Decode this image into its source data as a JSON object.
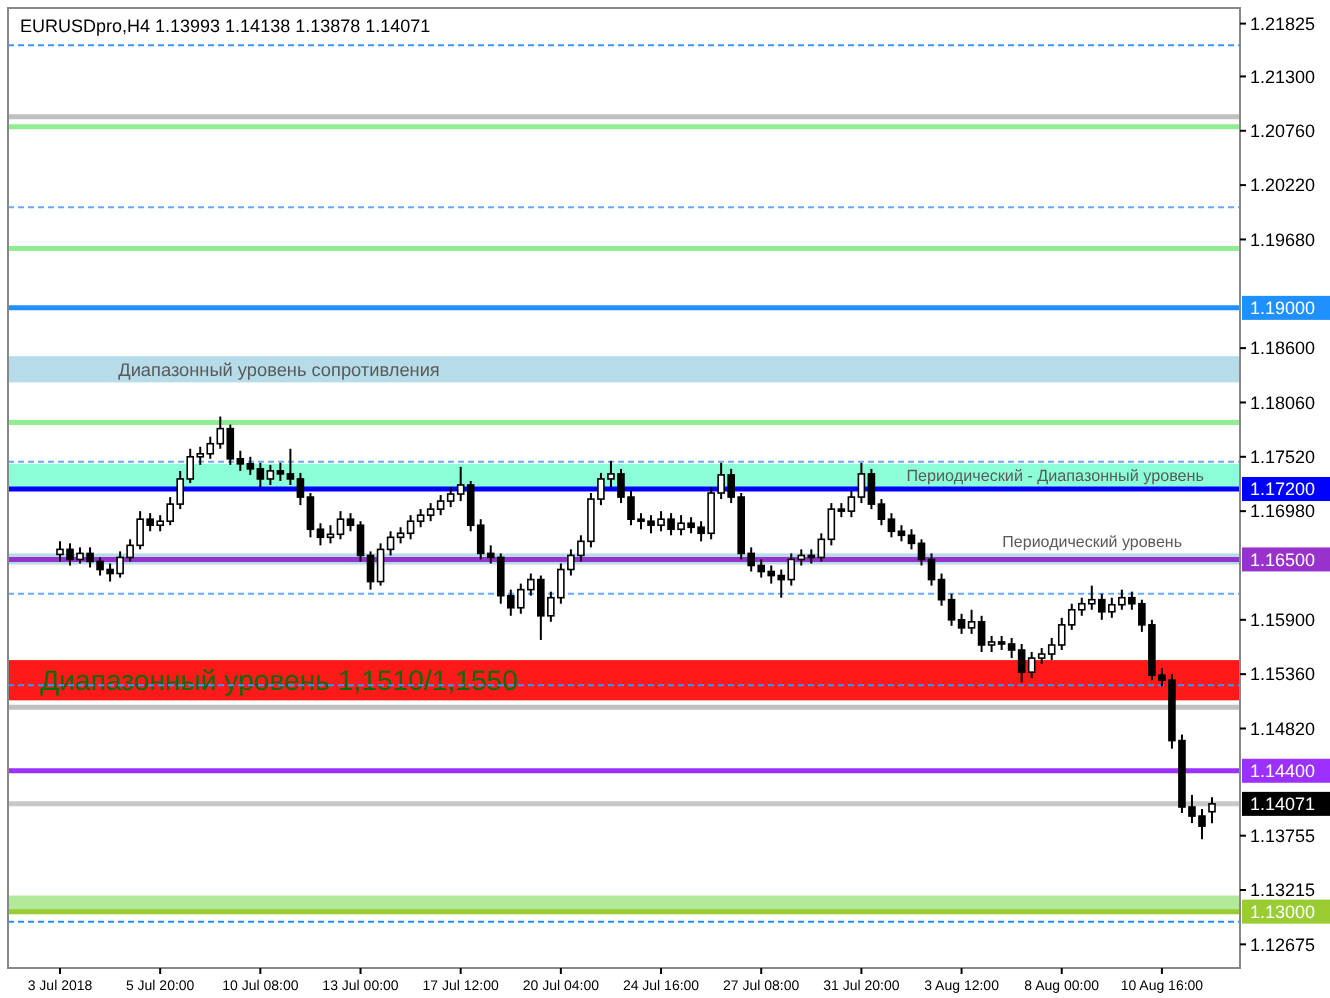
{
  "chart_data": {
    "type": "candlestick",
    "title": "EURUSDpro,H4  1.13993 1.14138 1.13878 1.14071",
    "categories": [
      "3 Jul 2018",
      null,
      null,
      null,
      null,
      null,
      null,
      null,
      null,
      null,
      "5 Jul 20:00",
      null,
      null,
      null,
      null,
      null,
      null,
      null,
      null,
      null,
      "10 Jul 08:00",
      null,
      null,
      null,
      null,
      null,
      null,
      null,
      null,
      null,
      "13 Jul 00:00",
      null,
      null,
      null,
      null,
      null,
      null,
      null,
      null,
      null,
      "17 Jul 12:00",
      null,
      null,
      null,
      null,
      null,
      null,
      null,
      null,
      null,
      "20 Jul 04:00",
      null,
      null,
      null,
      null,
      null,
      null,
      null,
      null,
      null,
      "24 Jul 16:00",
      null,
      null,
      null,
      null,
      null,
      null,
      null,
      null,
      null,
      "27 Jul 08:00",
      null,
      null,
      null,
      null,
      null,
      null,
      null,
      null,
      null,
      "31 Jul 20:00",
      null,
      null,
      null,
      null,
      null,
      null,
      null,
      null,
      null,
      "3 Aug 12:00",
      null,
      null,
      null,
      null,
      null,
      null,
      null,
      null,
      null,
      "8 Aug 00:00",
      null,
      null,
      null,
      null,
      null,
      null,
      null,
      null,
      null,
      "10 Aug 16:00",
      null,
      null,
      null,
      null,
      null
    ],
    "ohlc": [
      [
        1.1655,
        1.1668,
        1.1648,
        1.166
      ],
      [
        1.166,
        1.1666,
        1.1644,
        1.165
      ],
      [
        1.165,
        1.1662,
        1.1646,
        1.1656
      ],
      [
        1.1656,
        1.1662,
        1.1642,
        1.1648
      ],
      [
        1.1648,
        1.1652,
        1.1634,
        1.164
      ],
      [
        1.164,
        1.1646,
        1.1628,
        1.1636
      ],
      [
        1.1636,
        1.1658,
        1.1632,
        1.1652
      ],
      [
        1.1652,
        1.167,
        1.1648,
        1.1664
      ],
      [
        1.1664,
        1.1698,
        1.166,
        1.169
      ],
      [
        1.169,
        1.1696,
        1.1678,
        1.1684
      ],
      [
        1.1684,
        1.1694,
        1.1678,
        1.1688
      ],
      [
        1.1688,
        1.1712,
        1.1684,
        1.1705
      ],
      [
        1.1705,
        1.1738,
        1.17,
        1.173
      ],
      [
        1.173,
        1.176,
        1.1726,
        1.1752
      ],
      [
        1.1752,
        1.1762,
        1.1744,
        1.1755
      ],
      [
        1.1755,
        1.1772,
        1.175,
        1.1765
      ],
      [
        1.1765,
        1.1792,
        1.176,
        1.178
      ],
      [
        1.178,
        1.1784,
        1.1744,
        1.175
      ],
      [
        1.175,
        1.1758,
        1.1738,
        1.1745
      ],
      [
        1.1745,
        1.1752,
        1.1734,
        1.174
      ],
      [
        1.174,
        1.1746,
        1.1722,
        1.173
      ],
      [
        1.173,
        1.1744,
        1.1724,
        1.1738
      ],
      [
        1.1738,
        1.1746,
        1.1728,
        1.1735
      ],
      [
        1.1735,
        1.176,
        1.1724,
        1.173
      ],
      [
        1.173,
        1.1736,
        1.1704,
        1.1712
      ],
      [
        1.1712,
        1.1716,
        1.1672,
        1.168
      ],
      [
        1.168,
        1.1686,
        1.1664,
        1.1672
      ],
      [
        1.1672,
        1.1684,
        1.1666,
        1.1675
      ],
      [
        1.1675,
        1.1698,
        1.167,
        1.169
      ],
      [
        1.169,
        1.1696,
        1.1678,
        1.1684
      ],
      [
        1.1684,
        1.1688,
        1.1648,
        1.1654
      ],
      [
        1.1654,
        1.1658,
        1.162,
        1.1628
      ],
      [
        1.1628,
        1.1666,
        1.1624,
        1.166
      ],
      [
        1.166,
        1.1678,
        1.1654,
        1.1672
      ],
      [
        1.1672,
        1.1682,
        1.1666,
        1.1676
      ],
      [
        1.1676,
        1.1694,
        1.167,
        1.1688
      ],
      [
        1.1688,
        1.17,
        1.1682,
        1.1694
      ],
      [
        1.1694,
        1.1706,
        1.1688,
        1.17
      ],
      [
        1.17,
        1.1714,
        1.1694,
        1.1708
      ],
      [
        1.1708,
        1.1722,
        1.1702,
        1.1715
      ],
      [
        1.1715,
        1.1742,
        1.1708,
        1.1724
      ],
      [
        1.1724,
        1.1728,
        1.1678,
        1.1684
      ],
      [
        1.1684,
        1.169,
        1.165,
        1.1656
      ],
      [
        1.1656,
        1.1664,
        1.1646,
        1.1652
      ],
      [
        1.1652,
        1.1656,
        1.1606,
        1.1614
      ],
      [
        1.1614,
        1.162,
        1.1594,
        1.1602
      ],
      [
        1.1602,
        1.1626,
        1.1596,
        1.162
      ],
      [
        1.162,
        1.1636,
        1.1614,
        1.163
      ],
      [
        1.163,
        1.1634,
        1.157,
        1.1594
      ],
      [
        1.1594,
        1.1618,
        1.1588,
        1.1612
      ],
      [
        1.1612,
        1.1646,
        1.1606,
        1.164
      ],
      [
        1.164,
        1.166,
        1.1634,
        1.1654
      ],
      [
        1.1654,
        1.1674,
        1.1648,
        1.1668
      ],
      [
        1.1668,
        1.1716,
        1.1662,
        1.171
      ],
      [
        1.171,
        1.1736,
        1.1704,
        1.173
      ],
      [
        1.173,
        1.1748,
        1.1722,
        1.1735
      ],
      [
        1.1735,
        1.174,
        1.1706,
        1.1712
      ],
      [
        1.1712,
        1.1718,
        1.1684,
        1.169
      ],
      [
        1.169,
        1.1696,
        1.168,
        1.1688
      ],
      [
        1.1688,
        1.1694,
        1.1676,
        1.1684
      ],
      [
        1.1684,
        1.1698,
        1.1678,
        1.169
      ],
      [
        1.169,
        1.1696,
        1.1674,
        1.168
      ],
      [
        1.168,
        1.1694,
        1.1674,
        1.1686
      ],
      [
        1.1686,
        1.1692,
        1.1676,
        1.1682
      ],
      [
        1.1682,
        1.1688,
        1.1668,
        1.1676
      ],
      [
        1.1676,
        1.1722,
        1.167,
        1.1716
      ],
      [
        1.1716,
        1.1746,
        1.171,
        1.1734
      ],
      [
        1.1734,
        1.174,
        1.1706,
        1.1712
      ],
      [
        1.1712,
        1.1716,
        1.165,
        1.1656
      ],
      [
        1.1656,
        1.1662,
        1.1638,
        1.1644
      ],
      [
        1.1644,
        1.165,
        1.1632,
        1.1638
      ],
      [
        1.1638,
        1.1644,
        1.1626,
        1.1634
      ],
      [
        1.1634,
        1.164,
        1.1612,
        1.163
      ],
      [
        1.163,
        1.1656,
        1.1624,
        1.165
      ],
      [
        1.165,
        1.166,
        1.1644,
        1.1654
      ],
      [
        1.1654,
        1.166,
        1.1646,
        1.1652
      ],
      [
        1.1652,
        1.1676,
        1.1648,
        1.167
      ],
      [
        1.167,
        1.1706,
        1.1664,
        1.17
      ],
      [
        1.17,
        1.1706,
        1.1692,
        1.1698
      ],
      [
        1.1698,
        1.1718,
        1.1692,
        1.1712
      ],
      [
        1.1712,
        1.1746,
        1.1706,
        1.1735
      ],
      [
        1.1735,
        1.174,
        1.17,
        1.1705
      ],
      [
        1.1705,
        1.171,
        1.1684,
        1.169
      ],
      [
        1.169,
        1.1696,
        1.1672,
        1.1678
      ],
      [
        1.1678,
        1.1684,
        1.1668,
        1.1674
      ],
      [
        1.1674,
        1.168,
        1.166,
        1.1666
      ],
      [
        1.1666,
        1.167,
        1.1644,
        1.165
      ],
      [
        1.165,
        1.1656,
        1.1624,
        1.163
      ],
      [
        1.163,
        1.1636,
        1.1604,
        1.161
      ],
      [
        1.161,
        1.1616,
        1.1584,
        1.159
      ],
      [
        1.159,
        1.1596,
        1.1576,
        1.1582
      ],
      [
        1.1582,
        1.16,
        1.1576,
        1.1588
      ],
      [
        1.1588,
        1.1594,
        1.1558,
        1.1565
      ],
      [
        1.1565,
        1.1574,
        1.1558,
        1.1568
      ],
      [
        1.1568,
        1.1574,
        1.156,
        1.1566
      ],
      [
        1.1566,
        1.1572,
        1.1552,
        1.156
      ],
      [
        1.156,
        1.1566,
        1.1528,
        1.1538
      ],
      [
        1.1538,
        1.1558,
        1.1532,
        1.1552
      ],
      [
        1.1552,
        1.1562,
        1.1546,
        1.1556
      ],
      [
        1.1556,
        1.1572,
        1.155,
        1.1565
      ],
      [
        1.1565,
        1.1592,
        1.156,
        1.1585
      ],
      [
        1.1585,
        1.1606,
        1.158,
        1.16
      ],
      [
        1.16,
        1.1612,
        1.1594,
        1.1606
      ],
      [
        1.1606,
        1.1624,
        1.16,
        1.161
      ],
      [
        1.161,
        1.1616,
        1.159,
        1.1598
      ],
      [
        1.1598,
        1.1612,
        1.1592,
        1.1605
      ],
      [
        1.1605,
        1.162,
        1.16,
        1.1612
      ],
      [
        1.1612,
        1.1618,
        1.16,
        1.1606
      ],
      [
        1.1606,
        1.161,
        1.1578,
        1.1585
      ],
      [
        1.1585,
        1.159,
        1.153,
        1.1535
      ],
      [
        1.1535,
        1.1542,
        1.1524,
        1.153
      ],
      [
        1.153,
        1.1536,
        1.1462,
        1.147
      ],
      [
        1.147,
        1.1476,
        1.1398,
        1.1404
      ],
      [
        1.1404,
        1.1416,
        1.1388,
        1.1395
      ],
      [
        1.1395,
        1.1402,
        1.1372,
        1.1385
      ],
      [
        1.13993,
        1.14138,
        1.13878,
        1.14071
      ]
    ],
    "ylim": [
      1.1244,
      1.2198
    ],
    "yticks": [
      {
        "value": 1.21825,
        "label": "1.21825"
      },
      {
        "value": 1.213,
        "label": "1.21300"
      },
      {
        "value": 1.2076,
        "label": "1.20760"
      },
      {
        "value": 1.2022,
        "label": "1.20220"
      },
      {
        "value": 1.1968,
        "label": "1.19680"
      },
      {
        "value": 1.186,
        "label": "1.18600"
      },
      {
        "value": 1.1806,
        "label": "1.18060"
      },
      {
        "value": 1.1752,
        "label": "1.17520"
      },
      {
        "value": 1.1698,
        "label": "1.16980"
      },
      {
        "value": 1.159,
        "label": "1.15900"
      },
      {
        "value": 1.1536,
        "label": "1.15360"
      },
      {
        "value": 1.1482,
        "label": "1.14820"
      },
      {
        "value": 1.13755,
        "label": "1.13755"
      },
      {
        "value": 1.13215,
        "label": "1.13215"
      },
      {
        "value": 1.12675,
        "label": "1.12675"
      }
    ],
    "bands": [
      {
        "axis": "y",
        "from": 1.1826,
        "to": 1.1852,
        "label": "Диапазонный  уровень  сопротивления",
        "color": "#add8e6"
      },
      {
        "axis": "y",
        "from": 1.1722,
        "to": 1.1745,
        "label": "Периодический - Диапазонный  уровень",
        "color": "#7fffd4"
      },
      {
        "axis": "y",
        "from": 1.1645,
        "to": 1.1656,
        "label": "Периодический  уровень",
        "color": "#add8e6"
      },
      {
        "axis": "y",
        "from": 1.151,
        "to": 1.155,
        "label": "Диапазонный  уровень 1,1510/1,1550",
        "color": "#ff0000"
      },
      {
        "axis": "y",
        "from": 1.13,
        "to": 1.1316,
        "color": "#a8e890"
      }
    ],
    "ref_lines": [
      {
        "axis": "y",
        "value": 1.2161,
        "color": "#3399ff",
        "line_style": "dashed"
      },
      {
        "axis": "y",
        "value": 1.209,
        "color": "#c0c0c0"
      },
      {
        "axis": "y",
        "value": 1.208,
        "color": "#90ee90"
      },
      {
        "axis": "y",
        "value": 1.2,
        "color": "#66aaff",
        "line_style": "dashed"
      },
      {
        "axis": "y",
        "value": 1.1959,
        "color": "#90ee90"
      },
      {
        "axis": "y",
        "value": 1.19,
        "label": "1.19000",
        "color": "#1e90ff"
      },
      {
        "axis": "y",
        "value": 1.1786,
        "color": "#90ee90"
      },
      {
        "axis": "y",
        "value": 1.1747,
        "color": "#66aaff",
        "line_style": "dashed"
      },
      {
        "axis": "y",
        "value": 1.172,
        "label": "1.17200",
        "color": "#0000ff"
      },
      {
        "axis": "y",
        "value": 1.165,
        "label": "1.16500",
        "color": "#9932cc"
      },
      {
        "axis": "y",
        "value": 1.1616,
        "color": "#66aaff",
        "line_style": "dashed"
      },
      {
        "axis": "y",
        "value": 1.1525,
        "color": "#3399ff",
        "line_style": "dashed"
      },
      {
        "axis": "y",
        "value": 1.1503,
        "color": "#c0c0c0"
      },
      {
        "axis": "y",
        "value": 1.144,
        "label": "1.14400",
        "color": "#9b30ff"
      },
      {
        "axis": "y",
        "value": 1.14071,
        "label": "1.14071",
        "color": "#c8c8c8"
      },
      {
        "axis": "y",
        "value": 1.13,
        "label": "1.13000",
        "color": "#9acd32"
      },
      {
        "axis": "y",
        "value": 1.129,
        "color": "#1e90ff",
        "line_style": "dashed"
      }
    ]
  }
}
